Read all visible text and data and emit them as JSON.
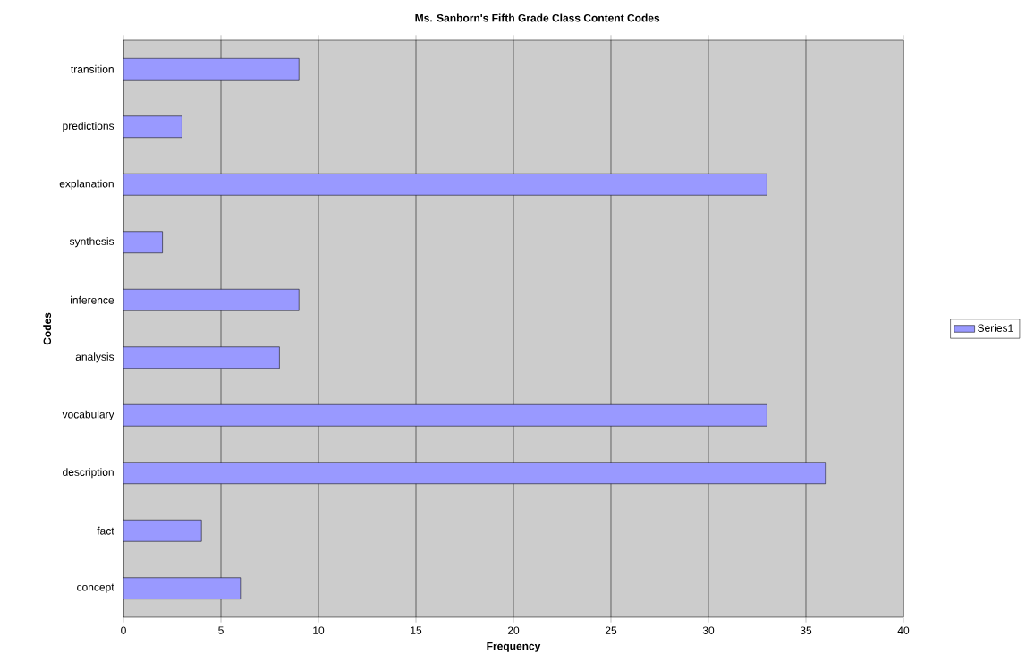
{
  "chart_data": {
    "type": "bar",
    "orientation": "horizontal",
    "title": "Ms. Sanborn's Fifth Grade Class Content Codes",
    "xlabel": "Frequency",
    "ylabel": "Codes",
    "categories": [
      "transition",
      "predictions",
      "explanation",
      "synthesis",
      "inference",
      "analysis",
      "vocabulary",
      "description",
      "fact",
      "concept"
    ],
    "series": [
      {
        "name": "Series1",
        "color": "#9999ff",
        "values": [
          9,
          3,
          33,
          2,
          9,
          8,
          33,
          36,
          4,
          6
        ]
      }
    ],
    "xlim": [
      0,
      40
    ],
    "xticks": [
      0,
      5,
      10,
      15,
      20,
      25,
      30,
      35,
      40
    ],
    "grid": "x",
    "legend": "right"
  }
}
